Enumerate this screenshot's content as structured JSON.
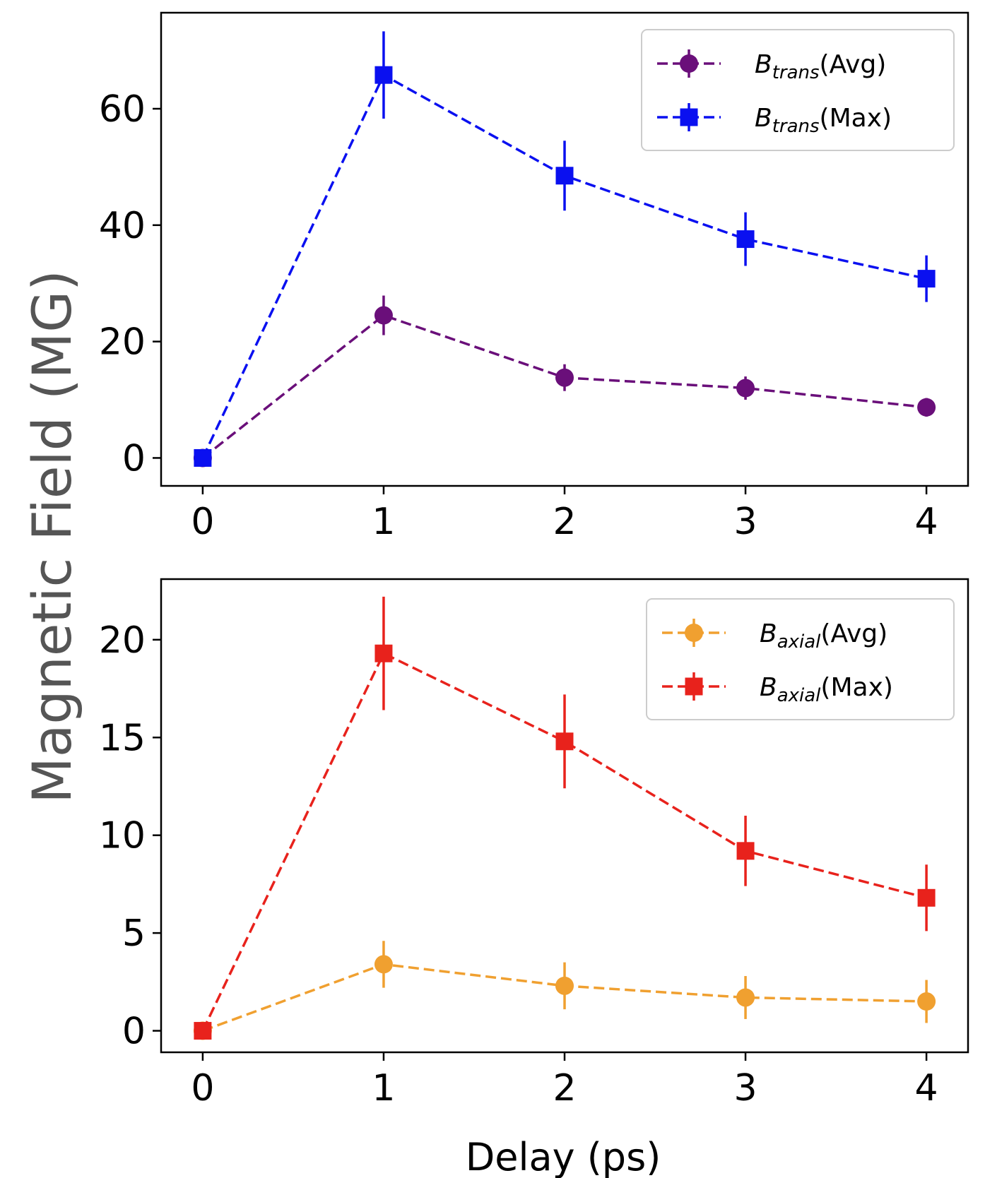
{
  "ylabel": "Magnetic Field (MG)",
  "xlabel": "Delay (ps)",
  "chart_data": [
    {
      "type": "line",
      "xlabel": "Delay (ps)",
      "ylabel": "Magnetic Field (MG)",
      "x": [
        0,
        1,
        2,
        3,
        4
      ],
      "xlim": [
        -0.23,
        4.23
      ],
      "ylim": [
        -4.8,
        76.5
      ],
      "xticks": [
        "0",
        "1",
        "2",
        "3",
        "4"
      ],
      "yticks": [
        "0",
        "20",
        "40",
        "60"
      ],
      "legend_position": "top-right",
      "series": [
        {
          "name": "B_trans(Avg)",
          "label_main": "B",
          "label_sub": "trans",
          "label_suffix": "(Avg)",
          "marker": "circle",
          "color": "#6a0f7a",
          "values": [
            0,
            24.5,
            13.8,
            12.0,
            8.7
          ],
          "errors": [
            0.5,
            3.4,
            2.3,
            2.0,
            1.6
          ]
        },
        {
          "name": "B_trans(Max)",
          "label_main": "B",
          "label_sub": "trans",
          "label_suffix": "(Max)",
          "marker": "square",
          "color": "#0a10f0",
          "values": [
            0,
            65.8,
            48.5,
            37.6,
            30.8
          ],
          "errors": [
            0.5,
            7.5,
            6.0,
            4.6,
            4.0
          ]
        }
      ]
    },
    {
      "type": "line",
      "xlabel": "Delay (ps)",
      "ylabel": "Magnetic Field (MG)",
      "x": [
        0,
        1,
        2,
        3,
        4
      ],
      "xlim": [
        -0.23,
        4.23
      ],
      "ylim": [
        -1.1,
        23.1
      ],
      "xticks": [
        "0",
        "1",
        "2",
        "3",
        "4"
      ],
      "yticks": [
        "0",
        "5",
        "10",
        "15",
        "20"
      ],
      "legend_position": "top-right",
      "series": [
        {
          "name": "B_axial(Avg)",
          "label_main": "B",
          "label_sub": "axial",
          "label_suffix": "(Avg)",
          "marker": "circle",
          "color": "#f0a030",
          "values": [
            0,
            3.4,
            2.3,
            1.7,
            1.5
          ],
          "errors": [
            0.2,
            1.2,
            1.2,
            1.1,
            1.1
          ]
        },
        {
          "name": "B_axial(Max)",
          "label_main": "B",
          "label_sub": "axial",
          "label_suffix": "(Max)",
          "marker": "square",
          "color": "#e8221c",
          "values": [
            0,
            19.3,
            14.8,
            9.2,
            6.8
          ],
          "errors": [
            0.2,
            2.9,
            2.4,
            1.8,
            1.7
          ]
        }
      ]
    }
  ]
}
